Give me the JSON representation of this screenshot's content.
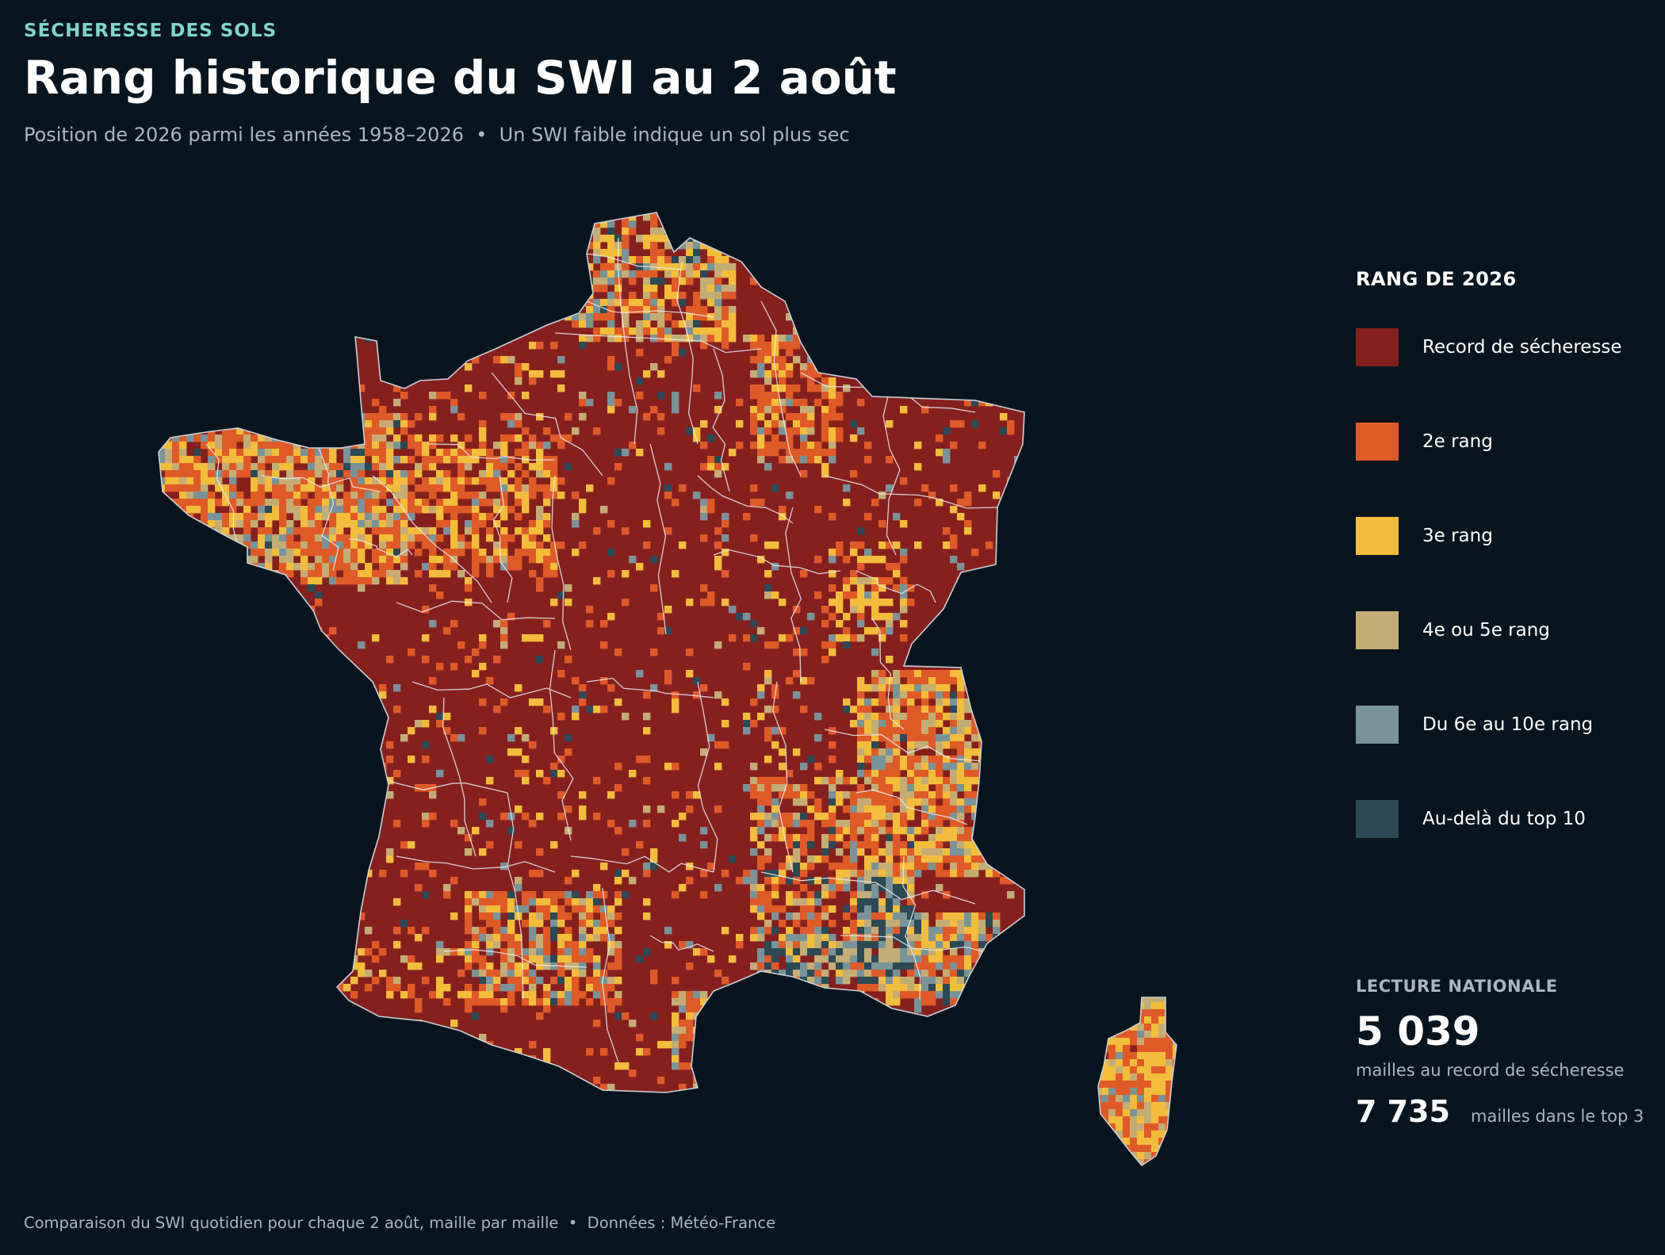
{
  "header": {
    "kicker": "SÉCHERESSE DES SOLS",
    "title": "Rang historique du SWI au 2 août",
    "subtitle": "Position de 2026 parmi les années 1958–2026  •  Un SWI faible indique un sol plus sec"
  },
  "legend": {
    "title": "RANG DE 2026",
    "items": [
      {
        "label": "Record de sécheresse",
        "color": "#85201d"
      },
      {
        "label": "2e rang",
        "color": "#e05a28"
      },
      {
        "label": "3e rang",
        "color": "#f2bd3b"
      },
      {
        "label": "4e ou 5e rang",
        "color": "#c4ad75"
      },
      {
        "label": "Du 6e au 10e rang",
        "color": "#799499"
      },
      {
        "label": "Au-delà du top 10",
        "color": "#2b4a55"
      }
    ]
  },
  "stats": {
    "title": "LECTURE NATIONALE",
    "record_count": "5 039",
    "record_caption": "mailles au record de sécheresse",
    "top3_count": "7 735",
    "top3_caption": "mailles dans le top 3"
  },
  "footer": "Comparaison du SWI quotidien pour chaque 2 août, maille par maille  •  Données : Météo-France",
  "colors": {
    "background": "#08151e",
    "accent": "#7fd6c9",
    "muted_text": "#a9b8c0",
    "border": "#e9eef0"
  }
}
